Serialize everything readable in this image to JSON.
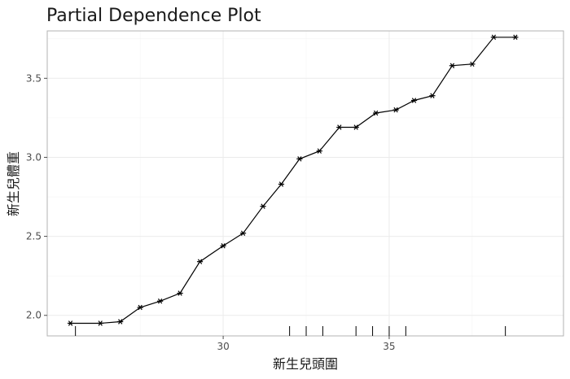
{
  "chart_data": {
    "type": "line",
    "title": "Partial Dependence Plot",
    "xlabel": "新生兒頭圍",
    "ylabel": "新生兒體重",
    "xlim": [
      24.7,
      40.25
    ],
    "ylim": [
      1.87,
      3.8
    ],
    "x_ticks": [
      30,
      35
    ],
    "y_ticks": [
      2.0,
      2.5,
      3.0,
      3.5
    ],
    "grid": true,
    "marker": "asterisk",
    "series": [
      {
        "x": [
          25.4,
          26.3,
          26.9,
          27.5,
          28.1,
          28.7,
          29.3,
          30.0,
          30.6,
          31.2,
          31.75,
          32.3,
          32.9,
          33.5,
          34.0,
          34.6,
          35.2,
          35.75,
          36.3,
          36.9,
          37.5,
          38.15,
          38.8
        ],
        "values": [
          1.95,
          1.95,
          1.96,
          2.05,
          2.09,
          2.14,
          2.34,
          2.44,
          2.52,
          2.69,
          2.83,
          2.99,
          3.04,
          3.19,
          3.19,
          3.28,
          3.3,
          3.36,
          3.39,
          3.58,
          3.59,
          3.76,
          3.76
        ]
      }
    ],
    "rug_x": [
      25.55,
      32.0,
      32.5,
      33.0,
      34.0,
      34.5,
      35.0,
      35.5,
      38.5
    ]
  }
}
